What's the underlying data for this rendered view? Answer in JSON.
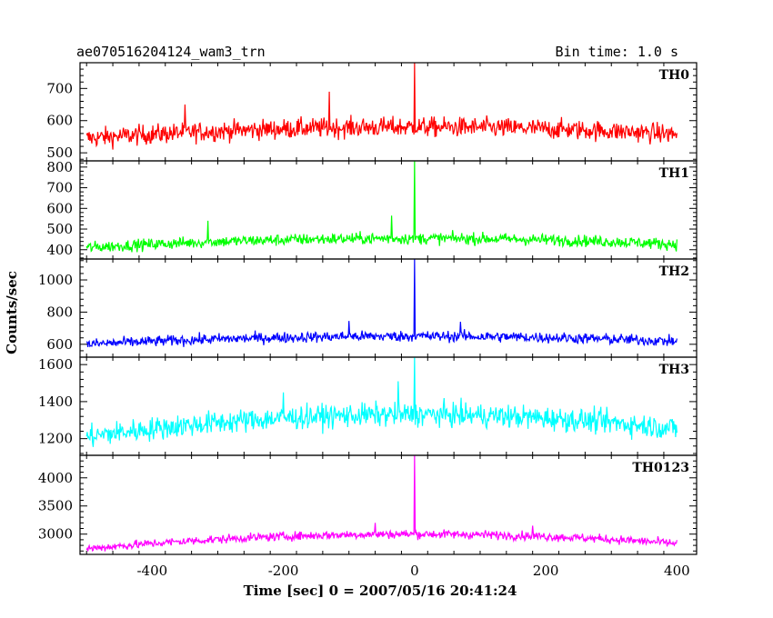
{
  "header": {
    "title": "ae070516204124_wam3_trn",
    "bin_time": "Bin time: 1.0 s"
  },
  "chart_data": {
    "type": "line",
    "xlabel": "Time [sec] 0 = 2007/05/16 20:41:24",
    "ylabel": "Counts/sec",
    "xlim": [
      -510,
      430
    ],
    "xticks": [
      -400,
      -200,
      0,
      200,
      400
    ],
    "grid": false,
    "panels": [
      {
        "name": "TH0",
        "color": "#ff0000",
        "ylim": [
          475,
          780
        ],
        "yticks": [
          500,
          600,
          700
        ],
        "baseline_edge": 545,
        "baseline_center": 580,
        "noise": 22,
        "spike_peak": 780,
        "extra_peaks": [
          {
            "x": -130,
            "y": 690
          },
          {
            "x": -350,
            "y": 650
          }
        ]
      },
      {
        "name": "TH1",
        "color": "#00ff00",
        "ylim": [
          355,
          830
        ],
        "yticks": [
          400,
          500,
          600,
          700,
          800
        ],
        "baseline_edge": 410,
        "baseline_center": 455,
        "noise": 20,
        "spike_peak": 830,
        "extra_peaks": [
          {
            "x": -35,
            "y": 565
          },
          {
            "x": -315,
            "y": 540
          }
        ]
      },
      {
        "name": "TH2",
        "color": "#0000ff",
        "ylim": [
          520,
          1130
        ],
        "yticks": [
          600,
          800,
          1000
        ],
        "baseline_edge": 600,
        "baseline_center": 650,
        "noise": 24,
        "spike_peak": 1130,
        "extra_peaks": [
          {
            "x": 70,
            "y": 740
          },
          {
            "x": -100,
            "y": 745
          }
        ]
      },
      {
        "name": "TH3",
        "color": "#00ffff",
        "ylim": [
          1110,
          1640
        ],
        "yticks": [
          1200,
          1400,
          1600
        ],
        "baseline_edge": 1210,
        "baseline_center": 1330,
        "noise": 45,
        "spike_peak": 1640,
        "extra_peaks": [
          {
            "x": -25,
            "y": 1510
          },
          {
            "x": -200,
            "y": 1450
          }
        ]
      },
      {
        "name": "TH0123",
        "color": "#ff00ff",
        "ylim": [
          2640,
          4400
        ],
        "yticks": [
          3000,
          3500,
          4000
        ],
        "baseline_edge": 2740,
        "baseline_center": 3000,
        "noise": 55,
        "spike_peak": 4400,
        "extra_peaks": [
          {
            "x": -60,
            "y": 3200
          },
          {
            "x": 180,
            "y": 3150
          }
        ]
      }
    ]
  }
}
